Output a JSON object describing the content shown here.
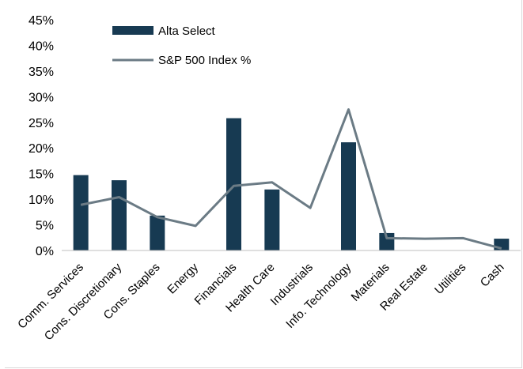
{
  "chart_data": {
    "type": "bar",
    "categories": [
      "Comm. Services",
      "Cons. Discretionary",
      "Cons. Staples",
      "Energy",
      "Financials",
      "Health Care",
      "Industrials",
      "Info. Technology",
      "Materials",
      "Real Estate",
      "Utilities",
      "Cash"
    ],
    "series": [
      {
        "name": "Alta Select",
        "type": "bar",
        "color": "#173a52",
        "values": [
          14.7,
          13.7,
          6.8,
          0,
          25.8,
          11.9,
          0,
          21.1,
          3.4,
          0,
          0,
          2.3
        ]
      },
      {
        "name": "S&P 500 Index %",
        "type": "line",
        "color": "#6b7b85",
        "values": [
          8.9,
          10.4,
          6.5,
          4.8,
          12.6,
          13.3,
          8.3,
          27.5,
          2.4,
          2.3,
          2.4,
          0.4
        ]
      }
    ],
    "y_ticks": [
      "0%",
      "5%",
      "10%",
      "15%",
      "20%",
      "25%",
      "30%",
      "35%",
      "40%",
      "45%"
    ],
    "ylim": [
      0,
      45
    ],
    "grid": false,
    "legend_position": "top-left"
  }
}
